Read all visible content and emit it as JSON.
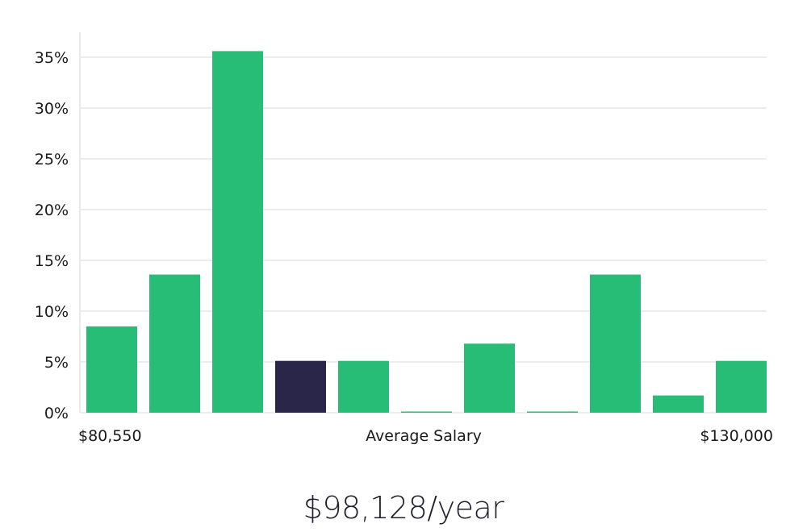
{
  "chart_data": {
    "type": "bar",
    "categories": [
      "1",
      "2",
      "3",
      "4",
      "5",
      "6",
      "7",
      "8",
      "9",
      "10",
      "11"
    ],
    "values": [
      8.5,
      13.6,
      35.6,
      5.1,
      5.1,
      0,
      6.8,
      0,
      13.6,
      1.7,
      5.1
    ],
    "highlight_index": 3,
    "ylim": [
      0,
      35
    ],
    "yticks": [
      0,
      5,
      10,
      15,
      20,
      25,
      30,
      35
    ],
    "ytick_labels": [
      "0%",
      "5%",
      "10%",
      "15%",
      "20%",
      "25%",
      "30%",
      "35%"
    ],
    "x_min_label": "$80,550",
    "x_max_label": "$130,000",
    "xlabel": "Average Salary",
    "grid": true,
    "colors": {
      "bar": "#27bd76",
      "highlight": "#2a2649",
      "grid": "#e0e0e0",
      "axis": "#d6d6d6"
    }
  },
  "salary_text": "$98,128/year"
}
